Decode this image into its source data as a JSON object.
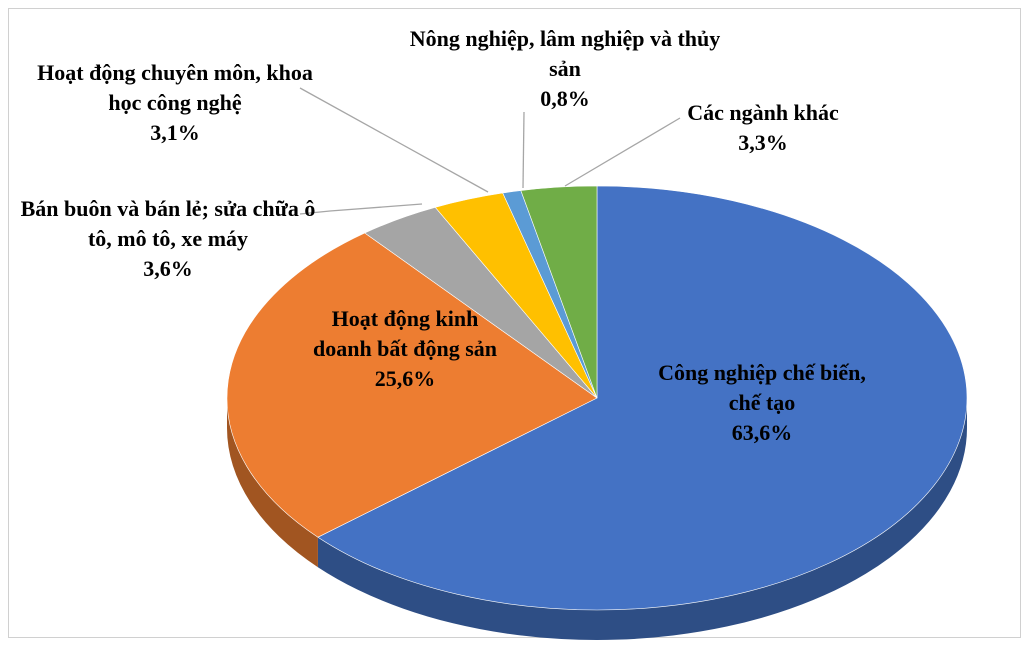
{
  "chart_data": {
    "type": "pie3d",
    "categories": [
      "Công nghiệp chế biến, chế tạo",
      "Hoạt động kinh doanh bất động sản",
      "Bán buôn và bán lẻ; sửa chữa ô tô, mô tô, xe máy",
      "Hoạt động chuyên môn, khoa học công nghệ",
      "Nông nghiệp, lâm nghiệp và thủy sản",
      "Các ngành khác"
    ],
    "values": [
      63.6,
      25.6,
      3.6,
      3.1,
      0.8,
      3.3
    ],
    "value_labels": [
      "63,6%",
      "25,6%",
      "3,6%",
      "3,1%",
      "0,8%",
      "3,3%"
    ],
    "colors": [
      "#4472c4",
      "#ed7d31",
      "#a5a5a5",
      "#ffc000",
      "#5b9bd5",
      "#70ad47"
    ]
  }
}
